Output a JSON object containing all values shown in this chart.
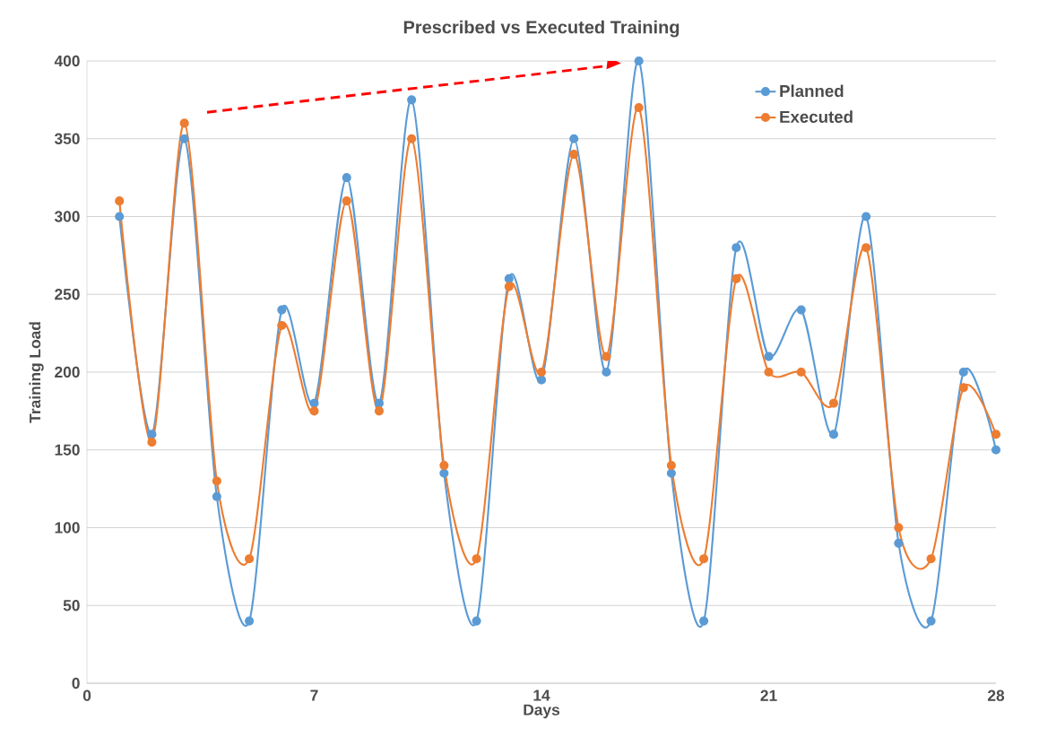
{
  "chart_data": {
    "type": "line",
    "title": "Prescribed vs Executed Training",
    "xlabel": "Days",
    "ylabel": "Training Load",
    "x": [
      1,
      2,
      3,
      4,
      5,
      6,
      7,
      8,
      9,
      10,
      11,
      12,
      13,
      14,
      15,
      16,
      17,
      18,
      19,
      20,
      21,
      22,
      23,
      24,
      25,
      26,
      27,
      28
    ],
    "series": [
      {
        "name": "Planned",
        "color": "#5b9bd5",
        "values": [
          300,
          160,
          350,
          120,
          40,
          240,
          180,
          325,
          180,
          375,
          135,
          40,
          260,
          195,
          350,
          200,
          400,
          135,
          40,
          280,
          210,
          240,
          160,
          300,
          90,
          40,
          200,
          150
        ]
      },
      {
        "name": "Executed",
        "color": "#ed7d31",
        "values": [
          310,
          155,
          360,
          130,
          80,
          230,
          175,
          310,
          175,
          350,
          140,
          80,
          255,
          200,
          340,
          210,
          370,
          140,
          80,
          260,
          200,
          200,
          180,
          280,
          100,
          80,
          190,
          160
        ]
      }
    ],
    "xlim": [
      0,
      28
    ],
    "xticks": [
      0,
      7,
      14,
      21,
      28
    ],
    "ylim": [
      0,
      400
    ],
    "yticks": [
      0,
      50,
      100,
      150,
      200,
      250,
      300,
      350,
      400
    ],
    "grid": "y",
    "legend": "top right",
    "marker": "circle",
    "line_style": "solid"
  }
}
